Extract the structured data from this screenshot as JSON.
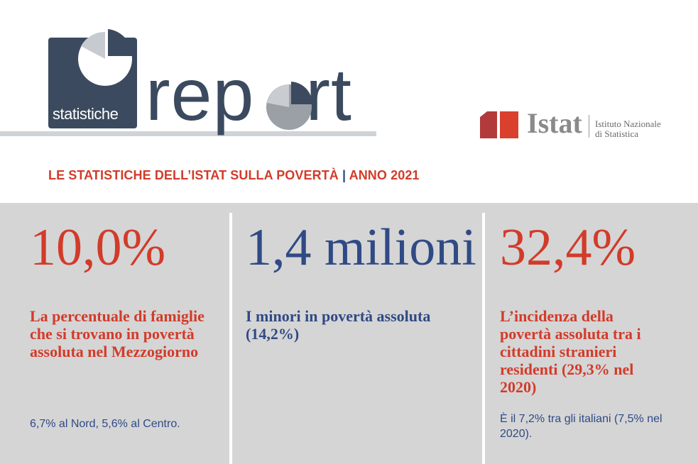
{
  "logo": {
    "word_small": "statistiche",
    "word_big": "rep",
    "word_big_end": "rt"
  },
  "istat": {
    "wordmark": "Istat",
    "line1": "Istituto Nazionale",
    "line2": "di Statistica"
  },
  "subtitle": {
    "part1": "LE STATISTICHE DELL’ISTAT SULLA POVERTÀ",
    "separator": "|",
    "part2": "ANNO 2021"
  },
  "stats": [
    {
      "value": "10,0%",
      "description": "La percentuale di famiglie che si trovano in povertà assoluta nel Mezzogiorno",
      "note": "6,7% al Nord, 5,6% al Centro."
    },
    {
      "value": "1,4 milioni",
      "description": "I minori in povertà assoluta (14,2%)",
      "note": ""
    },
    {
      "value": "32,4%",
      "description": "L’incidenza della povertà assoluta tra i cittadini stranieri residenti (29,3% nel 2020)",
      "note": "È il 7,2% tra gli italiani (7,5% nel 2020)."
    }
  ],
  "colors": {
    "red": "#d23b2a",
    "blue": "#2f4a85",
    "band": "#d5d5d5",
    "logo_navy": "#3b4a5e"
  }
}
